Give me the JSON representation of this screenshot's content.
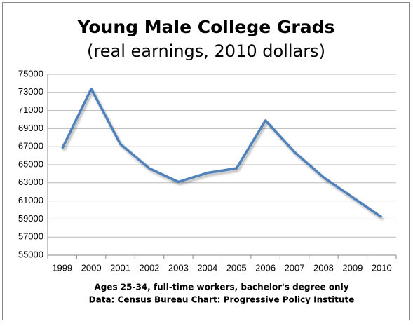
{
  "chart_data": {
    "type": "line",
    "title": "Young Male College Grads",
    "subtitle": "(real earnings, 2010 dollars)",
    "notes": [
      "Ages 25-34, full-time workers, bachelor's degree only",
      "Data: Census Bureau Chart: Progressive Policy Institute"
    ],
    "categories": [
      "1999",
      "2000",
      "2001",
      "2002",
      "2003",
      "2004",
      "2005",
      "2006",
      "2007",
      "2008",
      "2009",
      "2010"
    ],
    "series": [
      {
        "color": "#4f81bd",
        "values": [
          66800,
          73400,
          67300,
          64600,
          63100,
          64100,
          64600,
          69900,
          66400,
          63600,
          61400,
          59200
        ]
      }
    ],
    "ylim": [
      55000,
      75000
    ],
    "yticks": [
      55000,
      57000,
      59000,
      61000,
      63000,
      65000,
      67000,
      69000,
      71000,
      73000,
      75000
    ],
    "grid": true
  }
}
